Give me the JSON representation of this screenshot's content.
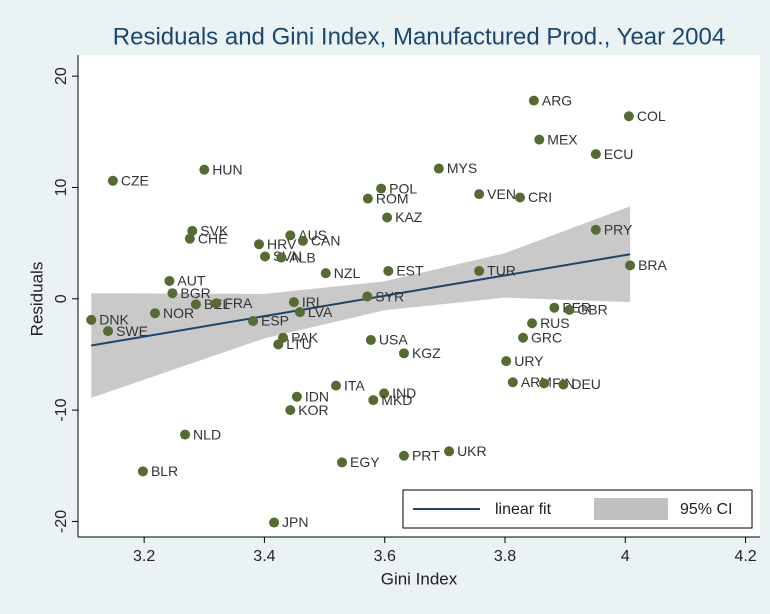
{
  "chart_data": {
    "type": "scatter",
    "title": "Residuals and Gini Index, Manufactured Prod., Year 2004",
    "x_label": "Gini Index",
    "y_label": "Residuals",
    "labels": [
      "ARG",
      "COL",
      "MEX",
      "ECU",
      "CZE",
      "HUN",
      "MYS",
      "POL",
      "ROM",
      "VEN",
      "CRI",
      "KAZ",
      "SVK",
      "CHE",
      "AUS",
      "CAN",
      "HRV",
      "SVN",
      "ALB",
      "PRY",
      "BRA",
      "NZL",
      "EST",
      "TUR",
      "AUT",
      "BGR",
      "BEL",
      "FRA",
      "IRL",
      "SYR",
      "LVA",
      "NOR",
      "DNK",
      "SWE",
      "ESP",
      "PER",
      "GBR",
      "RUS",
      "GRC",
      "PAK",
      "LTU",
      "USA",
      "KGZ",
      "URY",
      "ARM",
      "FIN",
      "DEU",
      "ITA",
      "IND",
      "MKD",
      "IDN",
      "KOR",
      "NLD",
      "BLR",
      "EGY",
      "PRT",
      "UKR",
      "JPN"
    ],
    "x": [
      3.848,
      4.006,
      3.857,
      3.951,
      3.148,
      3.3,
      3.69,
      3.594,
      3.572,
      3.757,
      3.825,
      3.604,
      3.28,
      3.276,
      3.443,
      3.464,
      3.391,
      3.401,
      3.428,
      3.951,
      4.008,
      3.502,
      3.606,
      3.757,
      3.242,
      3.247,
      3.286,
      3.32,
      3.449,
      3.571,
      3.459,
      3.218,
      3.112,
      3.14,
      3.381,
      3.882,
      3.907,
      3.845,
      3.83,
      3.431,
      3.423,
      3.577,
      3.632,
      3.802,
      3.813,
      3.865,
      3.897,
      3.519,
      3.599,
      3.581,
      3.454,
      3.443,
      3.268,
      3.198,
      3.529,
      3.632,
      3.707,
      3.416
    ],
    "values": [
      17.8,
      16.4,
      14.3,
      13.0,
      10.6,
      11.6,
      11.7,
      9.9,
      9.0,
      9.4,
      9.1,
      7.3,
      6.1,
      5.4,
      5.7,
      5.2,
      4.9,
      3.8,
      3.7,
      6.2,
      3.0,
      2.3,
      2.5,
      2.5,
      1.6,
      0.5,
      -0.5,
      -0.4,
      -0.3,
      0.2,
      -1.2,
      -1.3,
      -1.9,
      -2.9,
      -2.0,
      -0.8,
      -1.0,
      -2.2,
      -3.5,
      -3.5,
      -4.1,
      -3.7,
      -4.9,
      -5.6,
      -7.5,
      -7.6,
      -7.7,
      -7.8,
      -8.5,
      -9.1,
      -8.8,
      -10.0,
      -12.2,
      -15.5,
      -14.7,
      -14.1,
      -13.7,
      -20.1
    ],
    "color": "#556b2f",
    "fit": {
      "name": "linear fit",
      "color": "#1a476f",
      "x": [
        3.112,
        3.4,
        3.6,
        3.8,
        4.008
      ],
      "values": [
        -4.2,
        -1.56,
        0.27,
        2.1,
        4.0
      ]
    },
    "ci": {
      "name": "95% CI",
      "color": "#c0c0c0",
      "x": [
        3.112,
        3.4,
        3.6,
        3.8,
        4.008
      ],
      "upper": [
        0.5,
        0.44,
        1.57,
        4.1,
        8.3
      ],
      "lower": [
        -8.9,
        -3.56,
        -1.03,
        0.1,
        -0.3
      ]
    },
    "xlim": [
      3.09,
      4.224
    ],
    "xticks": [
      3.2,
      3.4,
      3.6,
      3.8,
      4,
      4.2
    ],
    "ylim": [
      -21.4,
      21.9
    ],
    "yticks": [
      -20,
      -10,
      0,
      10,
      20
    ],
    "grid": false,
    "legend": "bottom right"
  }
}
